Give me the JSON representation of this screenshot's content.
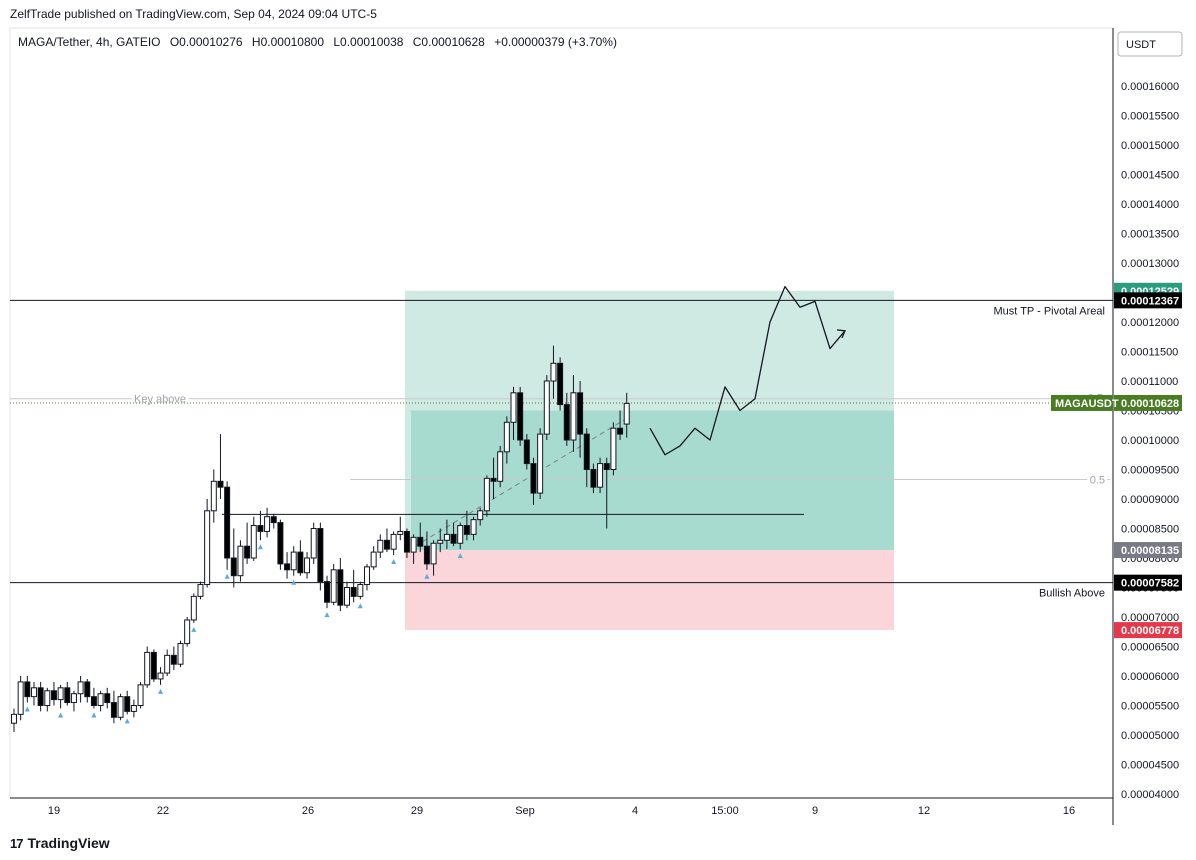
{
  "header": {
    "publisher": "ZelfTrade published on TradingView.com, Sep 04, 2024 09:04 UTC-5"
  },
  "footer": {
    "brand": "TradingView"
  },
  "colors": {
    "up_candle": "#ffffff",
    "down_candle": "#000000",
    "target_zone": "#cfe9e3",
    "target_zone_dark": "#a8dbd0",
    "stop_zone": "#fad6da",
    "tp_label": "#2a9d7e",
    "stop_label": "#e5394b",
    "symbol_label": "#4a7c23",
    "marker": "#5aa9e6"
  },
  "chart_data": {
    "type": "candlestick",
    "title": "MAGA/Tether, 4h, GATEIO",
    "ohlc": {
      "O": "O0.00010276",
      "H": "H0.00010800",
      "L": "L0.00010038",
      "C": "C0.00010628",
      "change": "+0.00000379 (+3.70%)"
    },
    "currency": "USDT",
    "ylim": [
      4e-05,
      0.000163
    ],
    "y_ticks": [
      "0.00016000",
      "0.00015500",
      "0.00015000",
      "0.00014500",
      "0.00014000",
      "0.00013500",
      "0.00013000",
      "0.00012500",
      "0.00012000",
      "0.00011500",
      "0.00011000",
      "0.00010500",
      "0.00010000",
      "0.00009500",
      "0.00009000",
      "0.00008500",
      "0.00008000",
      "0.00007500",
      "0.00007000",
      "0.00006500",
      "0.00006000",
      "0.00005500",
      "0.00005000",
      "0.00004500",
      "0.00004000"
    ],
    "x_ticks": [
      "19",
      "22",
      "26",
      "29",
      "Sep",
      "4",
      "15:00",
      "9",
      "12",
      "16"
    ],
    "candles": [
      [
        5.2e-05,
        5.45e-05,
        5.05e-05,
        5.35e-05
      ],
      [
        5.35e-05,
        6e-05,
        5.25e-05,
        5.9e-05
      ],
      [
        5.9e-05,
        6e-05,
        5.55e-05,
        5.65e-05
      ],
      [
        5.65e-05,
        5.9e-05,
        5.5e-05,
        5.8e-05
      ],
      [
        5.8e-05,
        5.9e-05,
        5.4e-05,
        5.5e-05
      ],
      [
        5.5e-05,
        5.8e-05,
        5.4e-05,
        5.75e-05
      ],
      [
        5.75e-05,
        5.9e-05,
        5.5e-05,
        5.6e-05
      ],
      [
        5.6e-05,
        5.85e-05,
        5.45e-05,
        5.8e-05
      ],
      [
        5.8e-05,
        5.9e-05,
        5.5e-05,
        5.55e-05
      ],
      [
        5.55e-05,
        5.75e-05,
        5.4e-05,
        5.7e-05
      ],
      [
        5.7e-05,
        6e-05,
        5.55e-05,
        5.9e-05
      ],
      [
        5.9e-05,
        5.95e-05,
        5.55e-05,
        5.65e-05
      ],
      [
        5.65e-05,
        5.8e-05,
        5.45e-05,
        5.5e-05
      ],
      [
        5.5e-05,
        5.75e-05,
        5.4e-05,
        5.7e-05
      ],
      [
        5.7e-05,
        5.8e-05,
        5.45e-05,
        5.55e-05
      ],
      [
        5.55e-05,
        5.75e-05,
        5.2e-05,
        5.3e-05
      ],
      [
        5.3e-05,
        5.7e-05,
        5.25e-05,
        5.65e-05
      ],
      [
        5.65e-05,
        5.75e-05,
        5.35e-05,
        5.4e-05
      ],
      [
        5.4e-05,
        5.6e-05,
        5.3e-05,
        5.5e-05
      ],
      [
        5.5e-05,
        5.9e-05,
        5.45e-05,
        5.85e-05
      ],
      [
        5.85e-05,
        6.5e-05,
        5.8e-05,
        6.4e-05
      ],
      [
        6.4e-05,
        6.45e-05,
        5.9e-05,
        5.95e-05
      ],
      [
        5.95e-05,
        6.15e-05,
        5.85e-05,
        6.05e-05
      ],
      [
        6.05e-05,
        6.45e-05,
        6e-05,
        6.35e-05
      ],
      [
        6.35e-05,
        6.5e-05,
        6.1e-05,
        6.2e-05
      ],
      [
        6.2e-05,
        6.6e-05,
        6.15e-05,
        6.55e-05
      ],
      [
        6.55e-05,
        7e-05,
        6.5e-05,
        6.95e-05
      ],
      [
        6.95e-05,
        7.4e-05,
        6.9e-05,
        7.35e-05
      ],
      [
        7.35e-05,
        7.6e-05,
        7.3e-05,
        7.55e-05
      ],
      [
        7.55e-05,
        9e-05,
        7.5e-05,
        8.8e-05
      ],
      [
        8.8e-05,
        9.5e-05,
        8.6e-05,
        9.3e-05
      ],
      [
        9.3e-05,
        0.000101,
        9e-05,
        9.2e-05
      ],
      [
        9.2e-05,
        9.3e-05,
        7.8e-05,
        8e-05
      ],
      [
        8e-05,
        8.5e-05,
        7.5e-05,
        7.7e-05
      ],
      [
        7.7e-05,
        8.3e-05,
        7.6e-05,
        8.2e-05
      ],
      [
        8.2e-05,
        8.6e-05,
        7.9e-05,
        8e-05
      ],
      [
        8e-05,
        8.7e-05,
        7.95e-05,
        8.55e-05
      ],
      [
        8.55e-05,
        8.8e-05,
        8.3e-05,
        8.45e-05
      ],
      [
        8.45e-05,
        8.85e-05,
        8.35e-05,
        8.7e-05
      ],
      [
        8.7e-05,
        8.75e-05,
        8.5e-05,
        8.6e-05
      ],
      [
        8.6e-05,
        8.65e-05,
        7.8e-05,
        7.9e-05
      ],
      [
        7.9e-05,
        8.1e-05,
        7.65e-05,
        7.8e-05
      ],
      [
        7.8e-05,
        8.2e-05,
        7.7e-05,
        8.1e-05
      ],
      [
        8.1e-05,
        8.3e-05,
        7.7e-05,
        7.75e-05
      ],
      [
        7.75e-05,
        8.1e-05,
        7.65e-05,
        8e-05
      ],
      [
        8e-05,
        8.6e-05,
        7.9e-05,
        8.5e-05
      ],
      [
        8.5e-05,
        8.6e-05,
        7.45e-05,
        7.6e-05
      ],
      [
        7.6e-05,
        7.7e-05,
        7.15e-05,
        7.25e-05
      ],
      [
        7.25e-05,
        7.9e-05,
        7.2e-05,
        7.8e-05
      ],
      [
        7.8e-05,
        8e-05,
        7.1e-05,
        7.2e-05
      ],
      [
        7.2e-05,
        7.6e-05,
        7.15e-05,
        7.5e-05
      ],
      [
        7.5e-05,
        7.8e-05,
        7.25e-05,
        7.35e-05
      ],
      [
        7.35e-05,
        7.6e-05,
        7.3e-05,
        7.55e-05
      ],
      [
        7.55e-05,
        7.9e-05,
        7.45e-05,
        7.85e-05
      ],
      [
        7.85e-05,
        8.2e-05,
        7.8e-05,
        8.1e-05
      ],
      [
        8.1e-05,
        8.4e-05,
        8e-05,
        8.3e-05
      ],
      [
        8.3e-05,
        8.5e-05,
        8.1e-05,
        8.15e-05
      ],
      [
        8.15e-05,
        8.45e-05,
        8.05e-05,
        8.4e-05
      ],
      [
        8.4e-05,
        8.7e-05,
        8.3e-05,
        8.45e-05
      ],
      [
        8.45e-05,
        8.5e-05,
        8e-05,
        8.1e-05
      ],
      [
        8.1e-05,
        8.4e-05,
        7.9e-05,
        8.35e-05
      ],
      [
        8.35e-05,
        8.6e-05,
        8.1e-05,
        8.2e-05
      ],
      [
        8.2e-05,
        8.45e-05,
        7.8e-05,
        7.9e-05
      ],
      [
        7.9e-05,
        8.3e-05,
        7.7e-05,
        8.25e-05
      ],
      [
        8.25e-05,
        8.5e-05,
        8.1e-05,
        8.3e-05
      ],
      [
        8.3e-05,
        8.65e-05,
        8.15e-05,
        8.4e-05
      ],
      [
        8.4e-05,
        8.6e-05,
        8.2e-05,
        8.25e-05
      ],
      [
        8.25e-05,
        8.6e-05,
        8.15e-05,
        8.55e-05
      ],
      [
        8.55e-05,
        8.8e-05,
        8.3e-05,
        8.4e-05
      ],
      [
        8.4e-05,
        8.7e-05,
        8.3e-05,
        8.65e-05
      ],
      [
        8.65e-05,
        8.85e-05,
        8.55e-05,
        8.8e-05
      ],
      [
        8.8e-05,
        9.4e-05,
        8.7e-05,
        9.35e-05
      ],
      [
        9.35e-05,
        9.7e-05,
        9e-05,
        9.3e-05
      ],
      [
        9.3e-05,
        9.9e-05,
        9.2e-05,
        9.8e-05
      ],
      [
        9.8e-05,
        0.000104,
        9.6e-05,
        0.000103
      ],
      [
        0.000103,
        0.000109,
        0.0001,
        0.000108
      ],
      [
        0.000108,
        0.000109,
        9.9e-05,
        0.0001
      ],
      [
        0.0001,
        0.000101,
        9.5e-05,
        9.6e-05
      ],
      [
        9.6e-05,
        9.7e-05,
        8.9e-05,
        9.1e-05
      ],
      [
        9.1e-05,
        0.000102,
        9e-05,
        0.000101
      ],
      [
        0.000101,
        0.000111,
        0.0001,
        0.00011
      ],
      [
        0.00011,
        0.000116,
        0.000107,
        0.000113
      ],
      [
        0.000113,
        0.000114,
        0.000105,
        0.000106
      ],
      [
        0.000106,
        0.000108,
        9.9e-05,
        0.0001
      ],
      [
        0.0001,
        0.000111,
        9.8e-05,
        0.000108
      ],
      [
        0.000108,
        0.00011,
        9.7e-05,
        0.000101
      ],
      [
        0.000101,
        0.000102,
        9.2e-05,
        9.5e-05
      ],
      [
        9.5e-05,
        9.6e-05,
        9.1e-05,
        9.2e-05
      ],
      [
        9.2e-05,
        9.7e-05,
        9.1e-05,
        9.6e-05
      ],
      [
        9.6e-05,
        9.7e-05,
        8.5e-05,
        9.5e-05
      ],
      [
        9.5e-05,
        0.000103,
        9.4e-05,
        0.000102
      ],
      [
        0.000102,
        0.000105,
        0.0001,
        0.000101
      ],
      [
        0.0001027,
        0.000108,
        0.0001004,
        0.0001062
      ]
    ],
    "zones": {
      "target": [
        8.135e-05,
        0.00012529
      ],
      "stop": [
        6.778e-05,
        8.135e-05
      ],
      "entry_value": 8.135e-05,
      "date_span": [
        "28",
        "10"
      ]
    },
    "levels": [
      {
        "label": "Must TP - Pivotal Areal",
        "value": 0.00012367
      },
      {
        "label": "Bullish Above",
        "value": 7.582e-05
      },
      {
        "label": "Key above",
        "value": 0.000107
      },
      {
        "label": "0.5",
        "value": 9.33e-05
      },
      {
        "label": "0.5",
        "value": 0.000107
      }
    ],
    "support_line": 8.74e-05,
    "price_tags": [
      {
        "text": "0.00012529",
        "value": 0.00012529,
        "kind": "tp"
      },
      {
        "text": "0.00012367",
        "value": 0.00012367,
        "kind": "level"
      },
      {
        "text": "0.00010628",
        "value": 0.00010628,
        "kind": "price",
        "symbol": "MAGAUSDT"
      },
      {
        "text": "0.00008135",
        "value": 8.135e-05,
        "kind": "entry"
      },
      {
        "text": "0.00007582",
        "value": 7.582e-05,
        "kind": "level"
      },
      {
        "text": "0.00006778",
        "value": 6.778e-05,
        "kind": "stop"
      }
    ],
    "projection": [
      [
        0.000102
      ],
      [
        9.75e-05
      ],
      [
        9.9e-05
      ],
      [
        0.000102
      ],
      [
        0.0001
      ],
      [
        0.000109
      ],
      [
        0.000105
      ],
      [
        0.000107
      ],
      [
        0.00012
      ],
      [
        0.000126
      ],
      [
        0.0001225
      ],
      [
        0.0001235
      ],
      [
        0.0001155
      ],
      [
        0.0001185
      ]
    ]
  }
}
